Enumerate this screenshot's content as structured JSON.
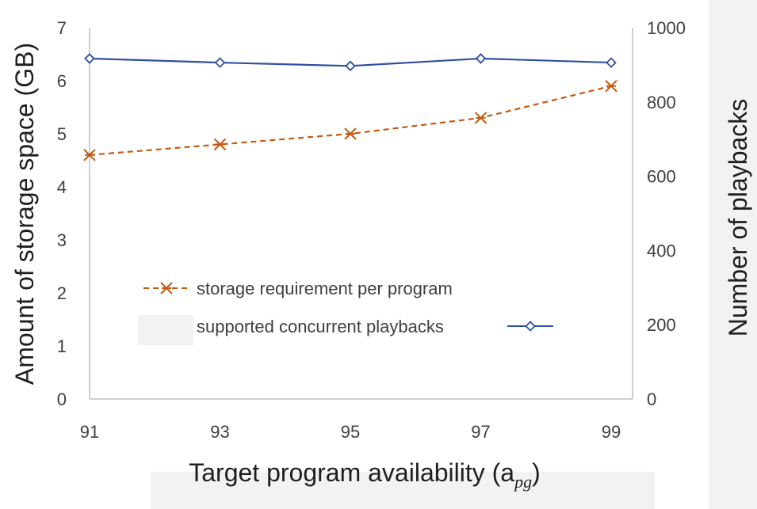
{
  "chart_data": {
    "type": "line",
    "x": [
      91,
      93,
      95,
      97,
      99
    ],
    "categories": [
      "91",
      "93",
      "95",
      "97",
      "99"
    ],
    "xlabel": "Target program availability (a",
    "xlabel_subscript": "pg",
    "xlabel_suffix": ")",
    "ylabel": "Amount of storage space (GB)",
    "ylabel_right": "Number of playbacks",
    "ylim": [
      0,
      7
    ],
    "y_ticks": [
      "0",
      "1",
      "2",
      "3",
      "4",
      "5",
      "6",
      "7"
    ],
    "ylim_right": [
      0,
      1000
    ],
    "y_ticks_right": [
      "0",
      "200",
      "400",
      "600",
      "800",
      "1000"
    ],
    "grid": false,
    "legend_position": "center-left",
    "series": [
      {
        "name": "storage requirement per program",
        "axis": "left",
        "values": [
          4.6,
          4.8,
          5.0,
          5.3,
          5.9
        ],
        "color": "#c55a11",
        "line_style": "dashed",
        "marker": "asterisk"
      },
      {
        "name": "supported concurrent playbacks",
        "axis": "right",
        "values": [
          917,
          906,
          897,
          917,
          906
        ],
        "color": "#2f4f9f",
        "line_style": "solid",
        "marker": "diamond-open"
      }
    ]
  }
}
